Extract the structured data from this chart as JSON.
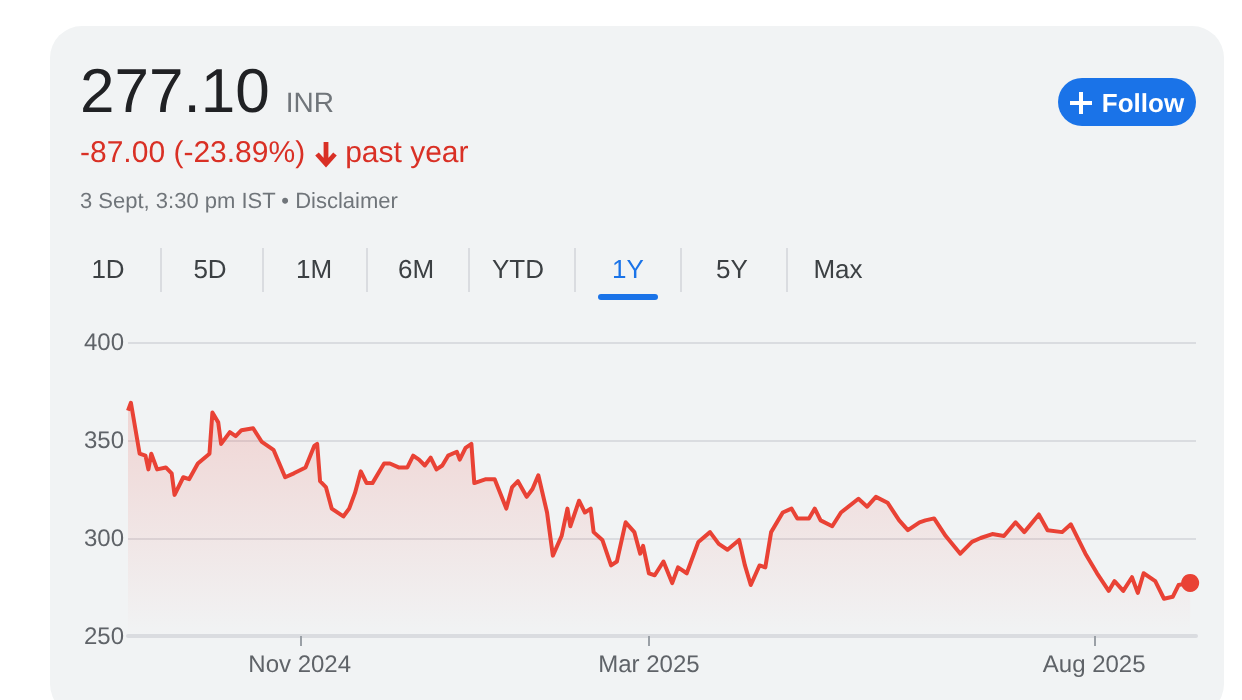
{
  "chart_data": {
    "type": "area",
    "title": "277.10",
    "annotations": [
      "INR",
      "-87.00 (-23.89%)",
      "past year",
      "3 Sept, 3:30 pm IST • Disclaimer",
      "Follow",
      "1D",
      "5D",
      "1M",
      "6M",
      "YTD",
      "1Y",
      "5Y",
      "Max"
    ],
    "x": [
      "2024-09-03",
      "2024-09-04",
      "2024-09-07",
      "2024-09-09",
      "2024-09-10",
      "2024-09-11",
      "2024-09-13",
      "2024-09-16",
      "2024-09-18",
      "2024-09-19",
      "2024-09-22",
      "2024-09-24",
      "2024-09-27",
      "2024-10-01",
      "2024-10-02",
      "2024-10-04",
      "2024-10-05",
      "2024-10-08",
      "2024-10-10",
      "2024-10-12",
      "2024-10-16",
      "2024-10-19",
      "2024-10-23",
      "2024-10-25",
      "2024-10-27",
      "2024-10-30",
      "2024-11-03",
      "2024-11-06",
      "2024-11-07",
      "2024-11-08",
      "2024-11-10",
      "2024-11-12",
      "2024-11-16",
      "2024-11-18",
      "2024-11-20",
      "2024-11-22",
      "2024-11-24",
      "2024-11-26",
      "2024-11-30",
      "2024-12-02",
      "2024-12-05",
      "2024-12-08",
      "2024-12-10",
      "2024-12-12",
      "2024-12-14",
      "2024-12-16",
      "2024-12-18",
      "2024-12-20",
      "2024-12-22",
      "2024-12-25",
      "2024-12-26",
      "2024-12-28",
      "2024-12-30",
      "2024-12-31",
      "2025-01-04",
      "2025-01-07",
      "2025-01-11",
      "2025-01-13",
      "2025-01-15",
      "2025-01-18",
      "2025-01-20",
      "2025-01-22",
      "2025-01-25",
      "2025-01-27",
      "2025-01-30",
      "2025-02-01",
      "2025-02-02",
      "2025-02-05",
      "2025-02-07",
      "2025-02-09",
      "2025-02-10",
      "2025-02-13",
      "2025-02-16",
      "2025-02-18",
      "2025-02-21",
      "2025-02-24",
      "2025-02-26",
      "2025-02-27",
      "2025-03-01",
      "2025-03-03",
      "2025-03-06",
      "2025-03-09",
      "2025-03-11",
      "2025-03-14",
      "2025-03-18",
      "2025-03-22",
      "2025-03-25",
      "2025-03-28",
      "2025-04-01",
      "2025-04-03",
      "2025-04-05",
      "2025-04-08",
      "2025-04-10",
      "2025-04-12",
      "2025-04-16",
      "2025-04-19",
      "2025-04-21",
      "2025-04-25",
      "2025-04-27",
      "2025-04-29",
      "2025-05-03",
      "2025-05-06",
      "2025-05-12",
      "2025-05-15",
      "2025-05-18",
      "2025-05-22",
      "2025-05-26",
      "2025-05-29",
      "2025-06-02",
      "2025-06-04",
      "2025-06-07",
      "2025-06-11",
      "2025-06-16",
      "2025-06-20",
      "2025-06-23",
      "2025-06-27",
      "2025-07-01",
      "2025-07-05",
      "2025-07-08",
      "2025-07-13",
      "2025-07-16",
      "2025-07-21",
      "2025-07-24",
      "2025-07-29",
      "2025-08-02",
      "2025-08-06",
      "2025-08-08",
      "2025-08-11",
      "2025-08-14",
      "2025-08-16",
      "2025-08-18",
      "2025-08-22",
      "2025-08-25",
      "2025-08-28",
      "2025-08-30",
      "2025-09-03"
    ],
    "values": [
      365,
      369,
      343,
      342,
      335,
      343,
      335,
      336,
      333,
      322,
      331,
      330,
      338,
      343,
      364,
      359,
      348,
      354,
      352,
      355,
      356,
      349,
      345,
      338,
      331,
      333,
      336,
      347,
      348,
      329,
      326,
      315,
      311,
      315,
      323,
      334,
      328,
      328,
      338,
      338,
      336,
      336,
      342,
      340,
      337,
      341,
      335,
      337,
      342,
      344,
      340,
      346,
      348,
      328,
      330,
      330,
      315,
      326,
      329,
      321,
      325,
      332,
      313,
      291,
      301,
      315,
      306,
      319,
      313,
      315,
      303,
      299,
      286,
      288,
      308,
      303,
      292,
      296,
      282,
      281,
      288,
      277,
      285,
      282,
      298,
      303,
      297,
      294,
      299,
      286,
      276,
      286,
      285,
      303,
      313,
      315,
      310,
      310,
      315,
      309,
      306,
      313,
      320,
      316,
      321,
      318,
      309,
      304,
      308,
      309,
      310,
      301,
      292,
      298,
      300,
      302,
      301,
      308,
      303,
      312,
      304,
      303,
      307,
      292,
      282,
      273,
      278,
      273,
      280,
      272,
      282,
      278,
      269,
      270,
      276,
      277.1
    ],
    "color": "#e94235",
    "xlim": [
      "2024-09-03",
      "2025-09-05"
    ],
    "xticks": [
      {
        "value": "2024-11-01",
        "label": "Nov 2024"
      },
      {
        "value": "2025-03-01",
        "label": "Mar 2025"
      },
      {
        "value": "2025-08-01",
        "label": "Aug 2025"
      }
    ],
    "ylim": [
      250,
      400
    ],
    "yticks": [
      250,
      300,
      350,
      400
    ],
    "grid": "y"
  }
}
